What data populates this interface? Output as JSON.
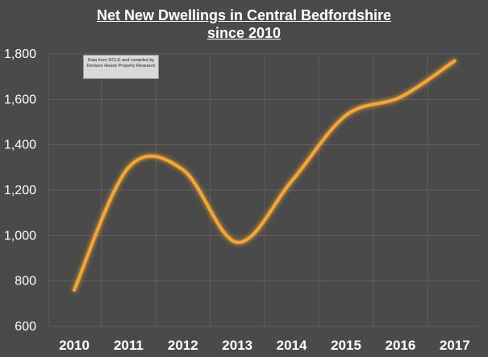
{
  "chart_data": {
    "type": "line",
    "title_lines": [
      "Net New Dwellings in Central Bedfordshire",
      "since 2010"
    ],
    "categories": [
      "2010",
      "2011",
      "2012",
      "2013",
      "2014",
      "2015",
      "2016",
      "2017"
    ],
    "series": [
      {
        "name": "Net new dwellings",
        "values": [
          760,
          1300,
          1290,
          970,
          1240,
          1530,
          1610,
          1770
        ]
      }
    ],
    "ylim": [
      600,
      1800
    ],
    "yticks": [
      600,
      800,
      1000,
      1200,
      1400,
      1600,
      1800
    ],
    "ytick_labels": [
      "600",
      "800",
      "1,000",
      "1,200",
      "1,400",
      "1,600",
      "1,800"
    ],
    "grid": true,
    "line_color": "#f5a630",
    "annotation": "Data from DCLG and compiled by Denison House Property Research"
  }
}
